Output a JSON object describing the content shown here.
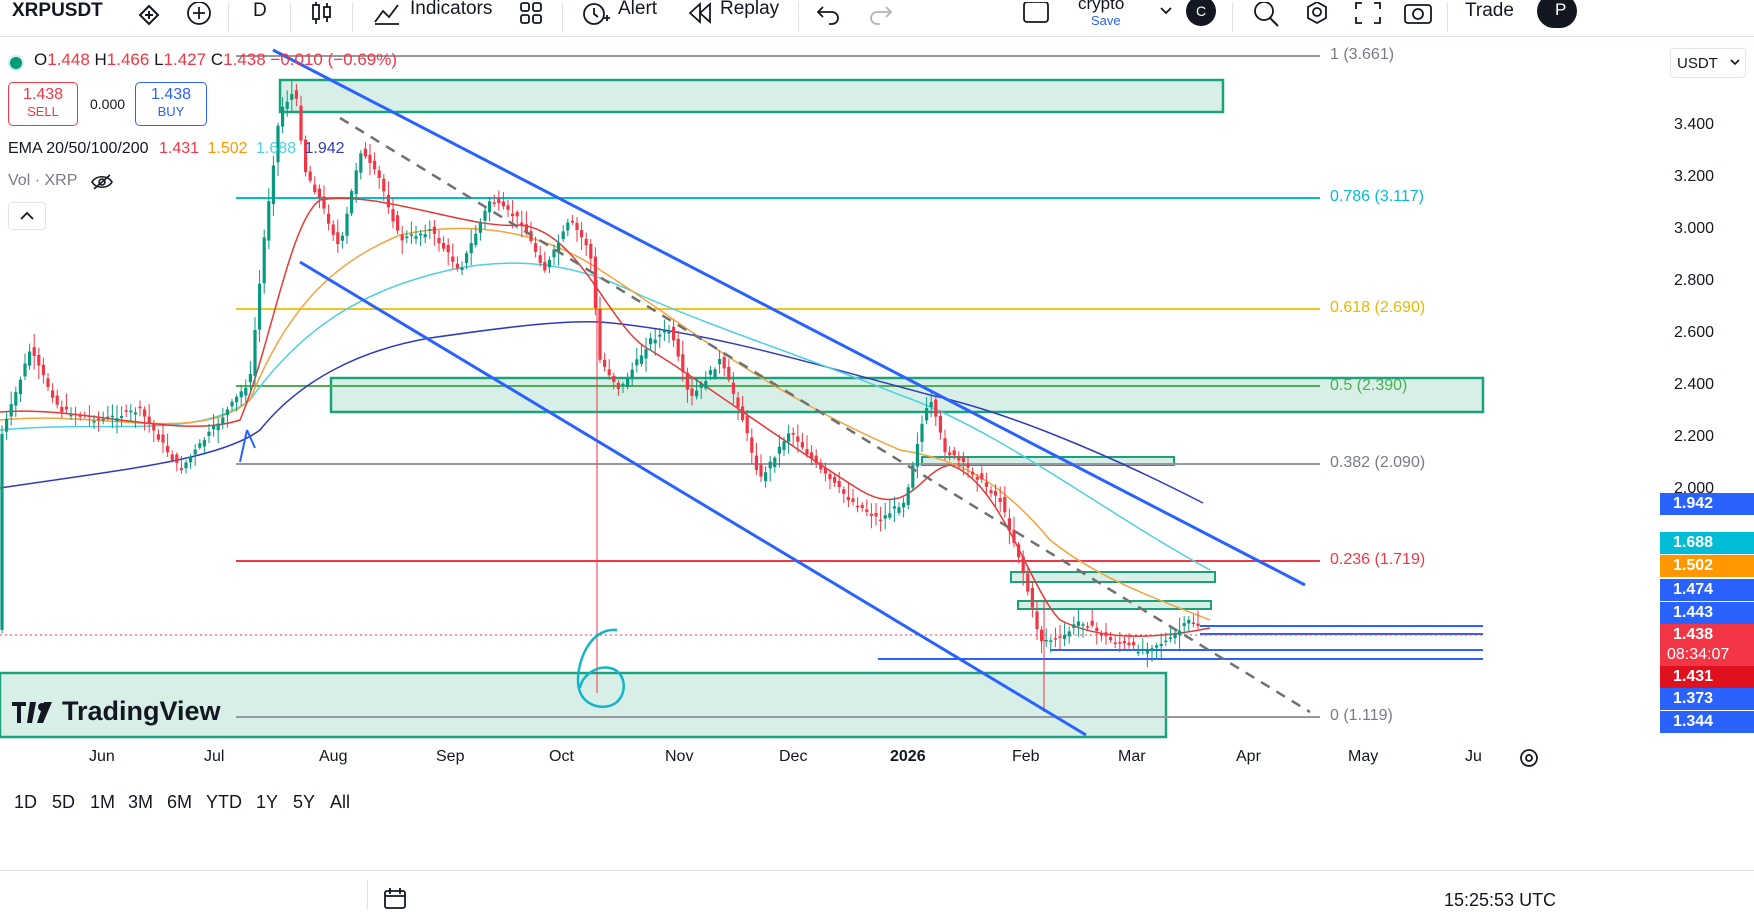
{
  "toolbar": {
    "symbol": "XRPUSDT",
    "interval": "D",
    "indicators_label": "Indicators",
    "alert_label": "Alert",
    "replay_label": "Replay",
    "layout_name": "crypto",
    "save_label": "Save",
    "avatar_letter": "C",
    "trade_label": "Trade",
    "publish_label": "P"
  },
  "legend": {
    "o_label": "O",
    "o_value": "1.448",
    "h_label": "H",
    "h_value": "1.466",
    "l_label": "L",
    "l_value": "1.427",
    "c_label": "C",
    "c_value": "1.438",
    "change": "−0.010 (−0.69%)",
    "sell_price": "1.438",
    "sell_label": "SELL",
    "spread": "0.000",
    "buy_price": "1.438",
    "buy_label": "BUY",
    "ema_title": "EMA 20/50/100/200",
    "ema20": "1.431",
    "ema50": "1.502",
    "ema100": "1.688",
    "ema200": "1.942",
    "vol_title": "Vol · XRP"
  },
  "fib_labels": [
    {
      "text": "1 (3.661)",
      "color": "#787b86"
    },
    {
      "text": "0.786 (3.117)",
      "color": "#00bcd4"
    },
    {
      "text": "0.618 (2.690)",
      "color": "#e8b800"
    },
    {
      "text": "0.5 (2.390)",
      "color": "#4caf50"
    },
    {
      "text": "0.382 (2.090)",
      "color": "#787b86"
    },
    {
      "text": "0.236 (1.719)",
      "color": "#f23645"
    },
    {
      "text": "0 (1.119)",
      "color": "#787b86"
    }
  ],
  "price_scale": {
    "currency": "USDT",
    "ticks": [
      "3.400",
      "3.200",
      "3.000",
      "2.800",
      "2.600",
      "2.400",
      "2.200",
      "2.000"
    ],
    "tags": [
      {
        "text": "1.942",
        "color": "#2962ff"
      },
      {
        "text": "1.688",
        "color": "#00bcd4"
      },
      {
        "text": "1.502",
        "color": "#ff9800"
      },
      {
        "text": "1.474",
        "color": "#2962ff"
      },
      {
        "text": "1.443",
        "color": "#2962ff"
      },
      {
        "text": "1.438",
        "color": "#f23645"
      },
      {
        "text": "08:34:07",
        "color": "#f23645"
      },
      {
        "text": "1.431",
        "color": "#e0111f"
      },
      {
        "text": "1.373",
        "color": "#2962ff"
      },
      {
        "text": "1.344",
        "color": "#2962ff"
      }
    ]
  },
  "time_axis": [
    "Jun",
    "Jul",
    "Aug",
    "Sep",
    "Oct",
    "Nov",
    "Dec",
    "2026",
    "Feb",
    "Mar",
    "Apr",
    "May",
    "Ju"
  ],
  "annotation_text": "6",
  "watermark": "TradingView",
  "bottom_bar": {
    "ranges": [
      "1D",
      "5D",
      "1M",
      "3M",
      "6M",
      "YTD",
      "1Y",
      "5Y",
      "All"
    ],
    "clock": "15:25:53 UTC"
  },
  "chart_data": {
    "type": "candlestick",
    "symbol": "XRPUSDT",
    "timeframe": "D",
    "x": [
      "May",
      "Jun",
      "Jul",
      "Aug",
      "Sep",
      "Oct",
      "Nov",
      "Dec",
      "2026-01",
      "Feb",
      "Mar"
    ],
    "close": [
      2.2,
      2.15,
      2.1,
      3.4,
      2.95,
      2.85,
      2.45,
      2.1,
      2.05,
      1.5,
      1.438
    ],
    "series": [
      {
        "name": "EMA 20",
        "last": 1.431,
        "color": "#f23645"
      },
      {
        "name": "EMA 50",
        "last": 1.502,
        "color": "#ff9800"
      },
      {
        "name": "EMA 100",
        "last": 1.688,
        "color": "#00bcd4"
      },
      {
        "name": "EMA 200",
        "last": 1.942,
        "color": "#2962ff"
      }
    ],
    "fibonacci": [
      {
        "level": 1,
        "price": 3.661
      },
      {
        "level": 0.786,
        "price": 3.117
      },
      {
        "level": 0.618,
        "price": 2.69
      },
      {
        "level": 0.5,
        "price": 2.39
      },
      {
        "level": 0.382,
        "price": 2.09
      },
      {
        "level": 0.236,
        "price": 1.719
      },
      {
        "level": 0,
        "price": 1.119
      }
    ],
    "ylim": [
      1.1,
      3.6
    ],
    "grid": false
  }
}
